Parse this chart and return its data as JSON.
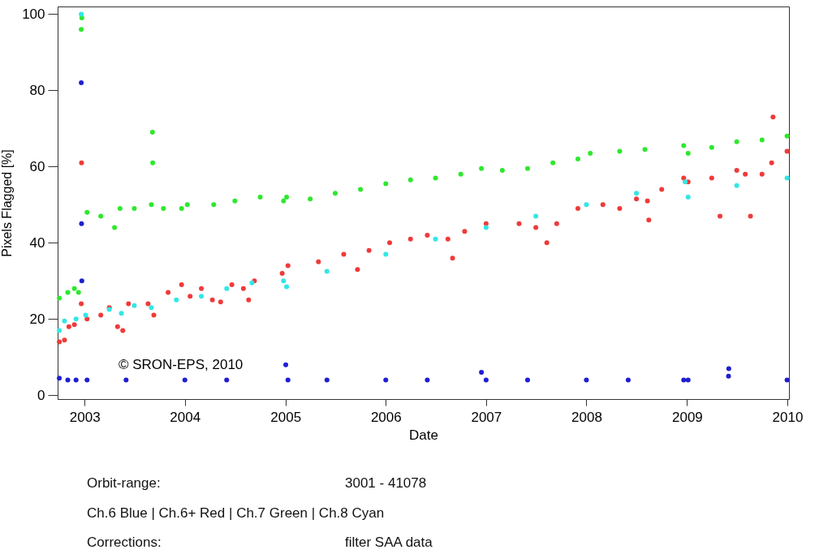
{
  "chart_data": {
    "type": "scatter",
    "xlabel": "Date",
    "ylabel": "Pixels Flagged [%]",
    "xlim": [
      "2002-09-25",
      "2010-01-07"
    ],
    "xticks": [
      "2003",
      "2004",
      "2005",
      "2006",
      "2007",
      "2008",
      "2009",
      "2010"
    ],
    "ylim": [
      -1,
      102
    ],
    "yticks": [
      0,
      20,
      40,
      60,
      80,
      100
    ],
    "grid": false,
    "legend": false,
    "marker": "circle",
    "annotations": [
      "© SRON-EPS, 2010",
      "Orbit-range:",
      "3001 - 41078",
      "Ch.6 Blue | Ch.6+ Red | Ch.7 Green | Ch.8 Cyan",
      "Corrections:",
      "filter SAA data"
    ],
    "series": [
      {
        "color": "#1f1fd0",
        "x": [
          "2002-10-01",
          "2002-11-01",
          "2002-12-01",
          "2002-12-20",
          "2002-12-21",
          "2002-12-22",
          "2003-01-10",
          "2003-06-01",
          "2004-01-01",
          "2004-06-01",
          "2005-01-02",
          "2005-01-10",
          "2005-06-01",
          "2006-01-01",
          "2006-06-01",
          "2006-12-15",
          "2007-01-01",
          "2007-06-01",
          "2008-01-01",
          "2008-06-01",
          "2008-12-20",
          "2009-01-05",
          "2009-06-01",
          "2009-06-02",
          "2009-12-31"
        ],
        "values": [
          4.5,
          4,
          4,
          82,
          45,
          30,
          4,
          4,
          4,
          4,
          8,
          4,
          4,
          4,
          4,
          6,
          4,
          4,
          4,
          4,
          4,
          4,
          5,
          7,
          4
        ]
      },
      {
        "color": "#f03a3a",
        "x": [
          "2002-10-01",
          "2002-10-20",
          "2002-11-05",
          "2002-11-25",
          "2002-12-20",
          "2002-12-21",
          "2003-01-10",
          "2003-03-01",
          "2003-04-01",
          "2003-05-01",
          "2003-05-20",
          "2003-06-10",
          "2003-08-20",
          "2003-09-10",
          "2003-11-01",
          "2003-12-20",
          "2004-01-20",
          "2004-03-01",
          "2004-04-10",
          "2004-05-10",
          "2004-06-20",
          "2004-08-01",
          "2004-08-20",
          "2004-09-10",
          "2004-12-20",
          "2005-01-10",
          "2005-05-01",
          "2005-08-01",
          "2005-09-20",
          "2005-11-01",
          "2006-01-15",
          "2006-04-01",
          "2006-06-01",
          "2006-08-15",
          "2006-09-01",
          "2006-10-15",
          "2007-01-01",
          "2007-05-01",
          "2007-07-01",
          "2007-08-10",
          "2007-09-15",
          "2007-12-01",
          "2008-03-01",
          "2008-05-01",
          "2008-07-01",
          "2008-08-10",
          "2008-08-15",
          "2008-10-01",
          "2008-12-20",
          "2009-01-05",
          "2009-04-01",
          "2009-05-01",
          "2009-07-01",
          "2009-08-01",
          "2009-08-20",
          "2009-10-01",
          "2009-11-05",
          "2009-11-10",
          "2009-12-31"
        ],
        "values": [
          14,
          14.5,
          18,
          18.5,
          24,
          61,
          20,
          21,
          23,
          18,
          17,
          24,
          24,
          21,
          27,
          29,
          26,
          28,
          25,
          24.5,
          29,
          28,
          25,
          30,
          32,
          34,
          35,
          37,
          33,
          38,
          40,
          41,
          42,
          41,
          36,
          43,
          45,
          45,
          44,
          40,
          45,
          49,
          50,
          49,
          51.5,
          51,
          46,
          54,
          57,
          56,
          57,
          47,
          59,
          58,
          47,
          58,
          61,
          73,
          64
        ]
      },
      {
        "color": "#2ee82e",
        "x": [
          "2002-10-01",
          "2002-11-01",
          "2002-11-25",
          "2002-12-10",
          "2002-12-20",
          "2002-12-22",
          "2003-01-10",
          "2003-03-01",
          "2003-04-20",
          "2003-05-10",
          "2003-07-01",
          "2003-09-01",
          "2003-09-05",
          "2003-09-06",
          "2003-10-15",
          "2003-12-20",
          "2004-01-10",
          "2004-04-15",
          "2004-07-01",
          "2004-10-01",
          "2004-12-25",
          "2005-01-05",
          "2005-04-01",
          "2005-07-01",
          "2005-10-01",
          "2006-01-01",
          "2006-04-01",
          "2006-07-01",
          "2006-10-01",
          "2006-12-15",
          "2007-03-01",
          "2007-06-01",
          "2007-09-01",
          "2007-12-01",
          "2008-01-15",
          "2008-05-01",
          "2008-08-01",
          "2008-12-20",
          "2009-01-05",
          "2009-04-01",
          "2009-07-01",
          "2009-10-01",
          "2009-12-31"
        ],
        "values": [
          25.5,
          27,
          28,
          27,
          96,
          99,
          48,
          47,
          44,
          49,
          49,
          50,
          69,
          61,
          49,
          49,
          50,
          50,
          51,
          52,
          51,
          52,
          51.5,
          53,
          54,
          55.5,
          56.5,
          57,
          58,
          59.5,
          59,
          59.5,
          61,
          62,
          63.5,
          64,
          64.5,
          65.5,
          63.5,
          65,
          66.5,
          67,
          68
        ]
      },
      {
        "color": "#33e6e6",
        "x": [
          "2002-10-01",
          "2002-10-20",
          "2002-12-01",
          "2002-12-20",
          "2003-01-05",
          "2003-04-01",
          "2003-05-15",
          "2003-07-01",
          "2003-09-01",
          "2003-12-01",
          "2004-03-01",
          "2004-06-01",
          "2004-09-01",
          "2004-12-25",
          "2005-01-05",
          "2005-06-01",
          "2006-01-01",
          "2006-07-01",
          "2007-01-01",
          "2007-07-01",
          "2008-01-01",
          "2008-07-01",
          "2008-12-25",
          "2009-01-05",
          "2009-07-01",
          "2009-12-31"
        ],
        "values": [
          17,
          19.5,
          20,
          100,
          21,
          22.5,
          21.5,
          23.5,
          23,
          25,
          26,
          28,
          29.5,
          30,
          28.5,
          32.5,
          37,
          41,
          44,
          47,
          50,
          53,
          56,
          52,
          55,
          57
        ]
      }
    ]
  }
}
